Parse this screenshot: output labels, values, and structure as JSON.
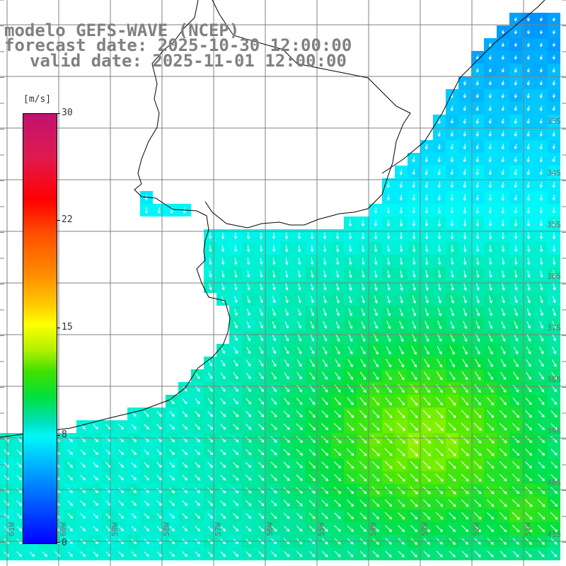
{
  "title": {
    "line1": "modelo GEFS-WAVE (NCEP)",
    "line2": "forecast date: 2025-10-30 12:00:00",
    "line3": "valid date: 2025-11-01 12:00:00"
  },
  "colorbar": {
    "unit": "[m/s]",
    "min": 0,
    "max": 30,
    "labels": [
      "30",
      "22",
      "15",
      "8",
      "0"
    ]
  },
  "grid": {
    "lat_labels": [
      "33S",
      "34S",
      "35S",
      "36S",
      "37S",
      "38S",
      "39S",
      "40S",
      "41S"
    ],
    "lon_labels": [
      "61W",
      "60W",
      "59W",
      "58W",
      "57W",
      "56W",
      "55W",
      "54W",
      "53W",
      "52W",
      "51W"
    ]
  },
  "colors": {
    "land": "#ffffff",
    "grid_lines": "#808080",
    "coastline": "#000000",
    "arrows": "#ffffff"
  }
}
